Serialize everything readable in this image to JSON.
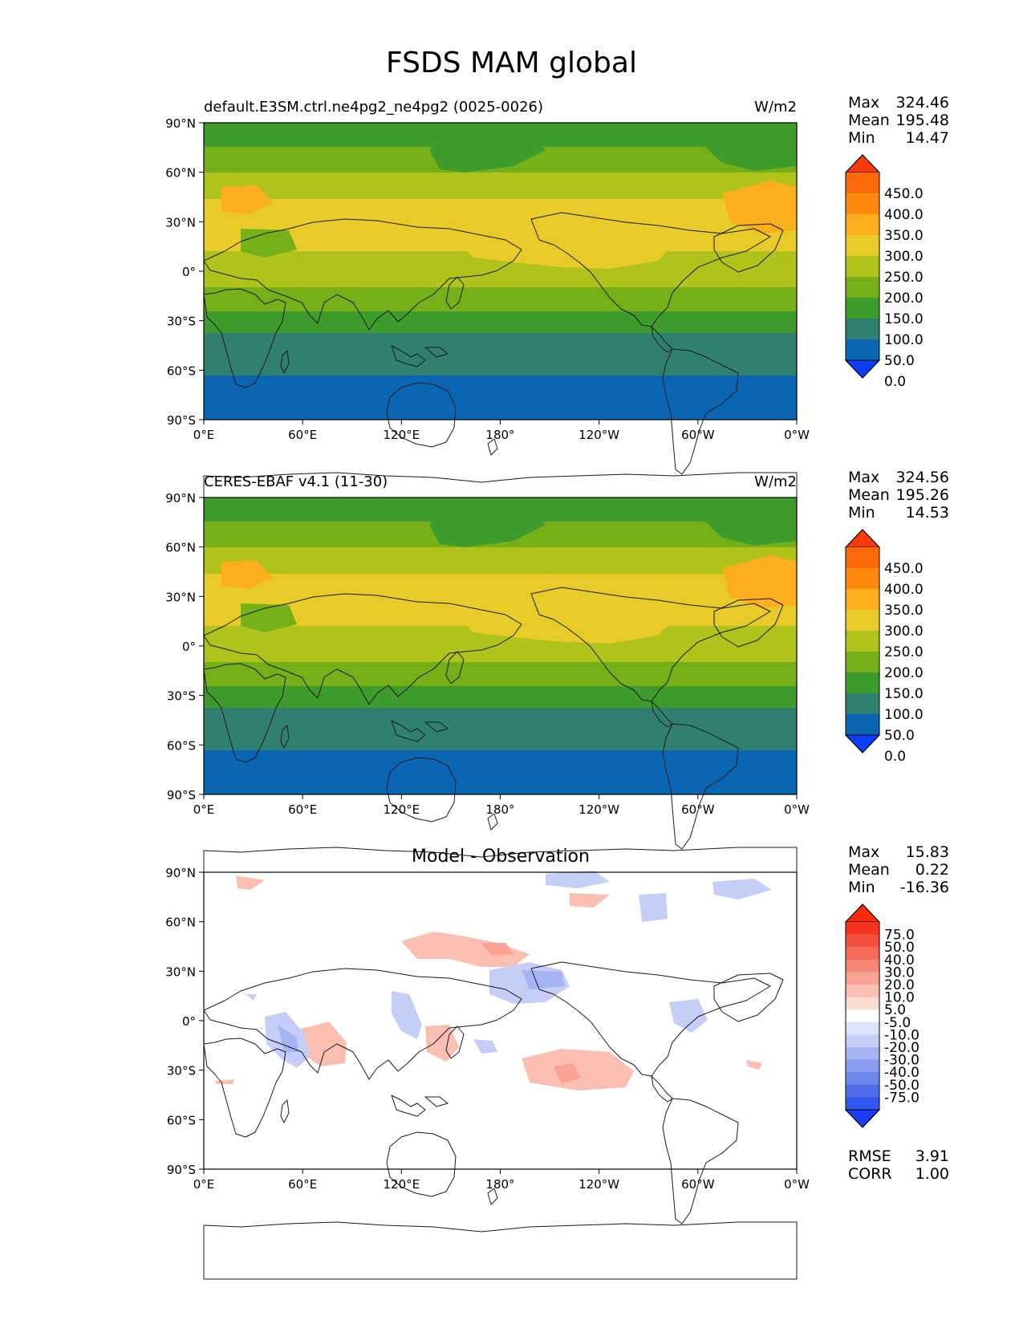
{
  "title": "FSDS MAM global",
  "axes": {
    "lat_ticks": [
      "90°N",
      "60°N",
      "30°N",
      "0°",
      "30°S",
      "60°S",
      "90°S"
    ],
    "lon_ticks": [
      "0°E",
      "60°E",
      "120°E",
      "180°",
      "120°W",
      "60°W",
      "0°W"
    ]
  },
  "colors": {
    "field": [
      "#0a3ff5",
      "#0a66b2",
      "#2f8070",
      "#3e9c2c",
      "#76b018",
      "#b0c21c",
      "#e8cb28",
      "#fbae1e",
      "#fc8a0e",
      "#fd6a0a",
      "#fd3a0a"
    ],
    "diff": [
      "#1c3cf5",
      "#3358f0",
      "#4f6fe8",
      "#6e87ec",
      "#8a9cf0",
      "#a6b4f2",
      "#c4cef6",
      "#dde3fa",
      "#ffffff",
      "#fbdad2",
      "#fbbfb2",
      "#f9a394",
      "#f88677",
      "#f56b5a",
      "#f3503e",
      "#f43320",
      "#ff2a0a"
    ]
  },
  "panels": [
    {
      "id": "model",
      "subtitle_left": "default.E3SM.ctrl.ne4pg2_ne4pg2 (0025-0026)",
      "subtitle_center": "",
      "units": "W/m2",
      "stats": [
        {
          "label": "Max",
          "value": "324.46"
        },
        {
          "label": "Mean",
          "value": "195.48"
        },
        {
          "label": "Min",
          "value": "14.47"
        }
      ],
      "colorbar_ticks": [
        "450.0",
        "400.0",
        "350.0",
        "300.0",
        "250.0",
        "200.0",
        "150.0",
        "100.0",
        "50.0",
        "0.0"
      ]
    },
    {
      "id": "obs",
      "subtitle_left": "CERES-EBAF v4.1 (11-30)",
      "subtitle_center": "",
      "units": "W/m2",
      "stats": [
        {
          "label": "Max",
          "value": "324.56"
        },
        {
          "label": "Mean",
          "value": "195.26"
        },
        {
          "label": "Min",
          "value": "14.53"
        }
      ],
      "colorbar_ticks": [
        "450.0",
        "400.0",
        "350.0",
        "300.0",
        "250.0",
        "200.0",
        "150.0",
        "100.0",
        "50.0",
        "0.0"
      ]
    },
    {
      "id": "diff",
      "subtitle_left": "",
      "subtitle_center": "Model - Observation",
      "units": "",
      "stats": [
        {
          "label": "Max",
          "value": "15.83"
        },
        {
          "label": "Mean",
          "value": "0.22"
        },
        {
          "label": "Min",
          "value": "-16.36"
        }
      ],
      "colorbar_ticks": [
        "75.0",
        "50.0",
        "40.0",
        "30.0",
        "20.0",
        "10.0",
        "5.0",
        "-5.0",
        "-10.0",
        "-20.0",
        "-30.0",
        "-40.0",
        "-50.0",
        "-75.0"
      ],
      "metrics": [
        {
          "label": "RMSE",
          "value": "3.91"
        },
        {
          "label": "CORR",
          "value": "1.00"
        }
      ]
    }
  ]
}
